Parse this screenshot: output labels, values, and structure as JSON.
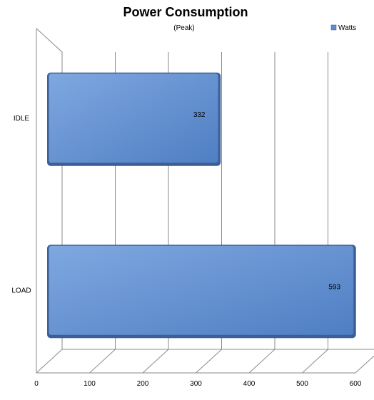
{
  "chart_data": {
    "type": "bar",
    "orientation": "horizontal",
    "title": "Power Consumption",
    "subtitle": "(Peak)",
    "categories": [
      "IDLE",
      "LOAD"
    ],
    "series": [
      {
        "name": "Watts",
        "values": [
          332,
          593
        ]
      }
    ],
    "xlim": [
      0,
      600
    ],
    "x_ticks": [
      "0",
      "100",
      "200",
      "300",
      "400",
      "500",
      "600"
    ],
    "gridlines": "vertical",
    "legend_position": "top-right",
    "style": "3d",
    "colors": {
      "bar": "#5f8ccd",
      "bar_edge": "#3b5f96",
      "grid": "#8a8a8a",
      "text": "#000000"
    }
  }
}
